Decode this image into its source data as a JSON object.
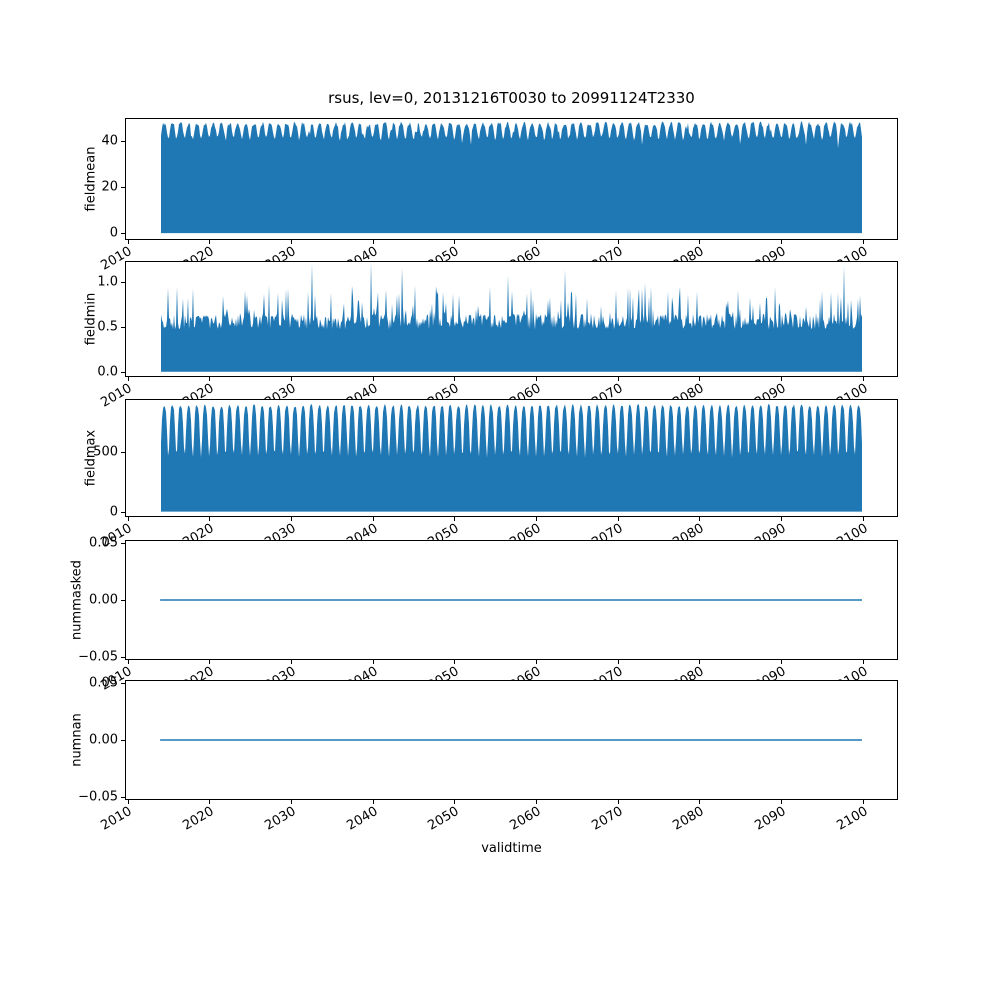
{
  "figure": {
    "title": "rsus, lev=0, 20131216T0030 to 20991124T2330",
    "xlabel": "validtime",
    "background": "#ffffff",
    "series_color": "#1f77b4",
    "axis_color": "#000000"
  },
  "chart_data": [
    {
      "type": "area",
      "ylabel": "fieldmean",
      "x_range": [
        2014.0,
        2099.9
      ],
      "xlim": [
        2009.7,
        2104.3
      ],
      "xtick_values": [
        2010,
        2020,
        2030,
        2040,
        2050,
        2060,
        2070,
        2080,
        2090,
        2100
      ],
      "xtick_labels": [
        "2010",
        "2020",
        "2030",
        "2040",
        "2050",
        "2060",
        "2070",
        "2080",
        "2090",
        "2100"
      ],
      "ylim": [
        -3.0,
        50.0
      ],
      "ytick_values": [
        0,
        20,
        40
      ],
      "ytick_labels": [
        "0",
        "20",
        "40"
      ],
      "shape": {
        "kind": "seasonal",
        "base": 0,
        "top_max": 47.6,
        "top_min": 41.0,
        "noise": 1.8,
        "dip_prob": 0.05,
        "dip_depth": 4
      }
    },
    {
      "type": "area",
      "ylabel": "fieldmin",
      "x_range": [
        2014.0,
        2099.9
      ],
      "xlim": [
        2009.7,
        2104.3
      ],
      "xtick_values": [
        2010,
        2020,
        2030,
        2040,
        2050,
        2060,
        2070,
        2080,
        2090,
        2100
      ],
      "xtick_labels": [
        "2010",
        "2020",
        "2030",
        "2040",
        "2050",
        "2060",
        "2070",
        "2080",
        "2090",
        "2100"
      ],
      "ylim": [
        -0.058,
        1.23
      ],
      "ytick_values": [
        0.0,
        0.5,
        1.0
      ],
      "ytick_labels": [
        "0.0",
        "0.5",
        "1.0"
      ],
      "shape": {
        "kind": "spikes",
        "base": 0,
        "top": 0.56,
        "noise": 0.09,
        "spike_prob": 0.22,
        "spike_max": 0.92,
        "tall_prob": 0.015,
        "tall_min": 0.95,
        "tall_max": 1.24
      }
    },
    {
      "type": "area",
      "ylabel": "fieldmax",
      "x_range": [
        2014.0,
        2099.9
      ],
      "xlim": [
        2009.7,
        2104.3
      ],
      "xtick_values": [
        2010,
        2020,
        2030,
        2040,
        2050,
        2060,
        2070,
        2080,
        2090,
        2100
      ],
      "xtick_labels": [
        "2010",
        "2020",
        "2030",
        "2040",
        "2050",
        "2060",
        "2070",
        "2080",
        "2090",
        "2100"
      ],
      "ylim": [
        -45,
        945
      ],
      "ytick_values": [
        0,
        500
      ],
      "ytick_labels": [
        "0",
        "500"
      ],
      "shape": {
        "kind": "notched",
        "base": 0,
        "top": 905,
        "notch_depth": 430,
        "notch_sigma": 0.2,
        "noise": 25
      }
    },
    {
      "type": "line",
      "ylabel": "nummasked",
      "value": 0.0,
      "x_range": [
        2014.0,
        2099.9
      ],
      "xlim": [
        2009.7,
        2104.3
      ],
      "xtick_values": [
        2010,
        2020,
        2030,
        2040,
        2050,
        2060,
        2070,
        2080,
        2090,
        2100
      ],
      "xtick_labels": [
        "2010",
        "2020",
        "2030",
        "2040",
        "2050",
        "2060",
        "2070",
        "2080",
        "2090",
        "2100"
      ],
      "ylim": [
        -0.0526,
        0.0526
      ],
      "ytick_values": [
        -0.05,
        0.0,
        0.05
      ],
      "ytick_labels": [
        "−0.05",
        "0.00",
        "0.05"
      ]
    },
    {
      "type": "line",
      "ylabel": "numnan",
      "value": 0.0,
      "x_range": [
        2014.0,
        2099.9
      ],
      "xlim": [
        2009.7,
        2104.3
      ],
      "xtick_values": [
        2010,
        2020,
        2030,
        2040,
        2050,
        2060,
        2070,
        2080,
        2090,
        2100
      ],
      "xtick_labels": [
        "2010",
        "2020",
        "2030",
        "2040",
        "2050",
        "2060",
        "2070",
        "2080",
        "2090",
        "2100"
      ],
      "ylim": [
        -0.0526,
        0.0526
      ],
      "ytick_values": [
        -0.05,
        0.0,
        0.05
      ],
      "ytick_labels": [
        "−0.05",
        "0.00",
        "0.05"
      ]
    }
  ]
}
